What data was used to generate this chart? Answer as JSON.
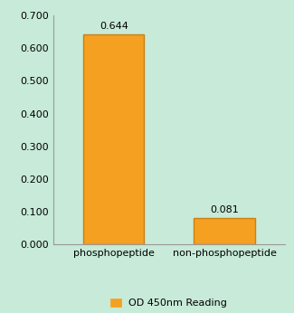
{
  "categories": [
    "phosphopeptide",
    "non-phosphopeptide"
  ],
  "values": [
    0.644,
    0.081
  ],
  "bar_color": "#F5A020",
  "bar_edge_color": "#CC8010",
  "background_color": "#C8EAD8",
  "plot_bg_color": "#C8EAD8",
  "ylim": [
    0.0,
    0.7
  ],
  "yticks": [
    0.0,
    0.1,
    0.2,
    0.3,
    0.4,
    0.5,
    0.6,
    0.7
  ],
  "ytick_labels": [
    "0.000",
    "0.100",
    "0.200",
    "0.300",
    "0.400",
    "0.500",
    "0.600",
    "0.700"
  ],
  "legend_label": "OD 450nm Reading",
  "label_fontsize": 8,
  "tick_fontsize": 8,
  "annotation_fontsize": 8,
  "legend_fontsize": 8,
  "bar_width": 0.55
}
